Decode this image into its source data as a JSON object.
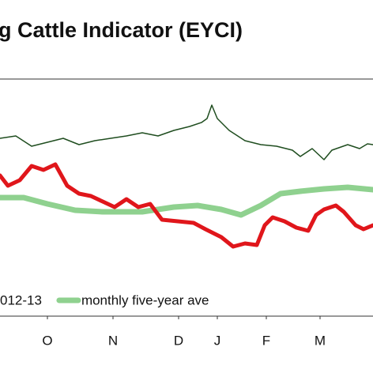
{
  "chart_data": {
    "type": "line",
    "title": "g Cattle Indicator (EYCI)",
    "xlim": [
      0,
      472
    ],
    "xticks": [
      {
        "value": 60,
        "label": "O"
      },
      {
        "value": 143,
        "label": "N"
      },
      {
        "value": 226,
        "label": "D"
      },
      {
        "value": 275,
        "label": "J"
      },
      {
        "value": 337,
        "label": "F"
      },
      {
        "value": 405,
        "label": "M"
      }
    ],
    "ylim": [
      0,
      300
    ],
    "series": [
      {
        "color": "#1f4d1f",
        "width": 1.5,
        "x": [
          0,
          20,
          40,
          60,
          80,
          100,
          120,
          140,
          160,
          180,
          200,
          220,
          240,
          255,
          262,
          268,
          275,
          290,
          310,
          330,
          350,
          370,
          380,
          395,
          410,
          420,
          440,
          455,
          465,
          472
        ],
        "values": [
          225,
          228,
          215,
          220,
          225,
          217,
          222,
          225,
          228,
          232,
          228,
          235,
          240,
          245,
          250,
          267,
          250,
          235,
          222,
          217,
          215,
          210,
          202,
          212,
          198,
          210,
          217,
          212,
          218,
          217
        ]
      },
      {
        "name": "012-13",
        "color": "#e0161b",
        "width": 5,
        "x": [
          0,
          10,
          25,
          40,
          55,
          70,
          85,
          100,
          115,
          130,
          145,
          160,
          175,
          190,
          205,
          225,
          245,
          260,
          280,
          295,
          310,
          325,
          335,
          345,
          360,
          375,
          390,
          400,
          410,
          425,
          435,
          450,
          460,
          472
        ],
        "values": [
          178,
          165,
          172,
          190,
          185,
          192,
          165,
          155,
          152,
          145,
          138,
          148,
          138,
          142,
          122,
          120,
          118,
          110,
          100,
          88,
          92,
          90,
          115,
          125,
          120,
          112,
          108,
          128,
          135,
          140,
          132,
          115,
          110,
          115
        ]
      },
      {
        "name": "monthly five-year ave",
        "color": "#8fd18f",
        "width": 7,
        "x": [
          0,
          30,
          60,
          95,
          130,
          180,
          220,
          250,
          280,
          305,
          330,
          355,
          380,
          410,
          440,
          472
        ],
        "values": [
          150,
          150,
          142,
          134,
          132,
          132,
          138,
          140,
          135,
          128,
          140,
          155,
          158,
          161,
          163,
          160
        ]
      }
    ]
  }
}
